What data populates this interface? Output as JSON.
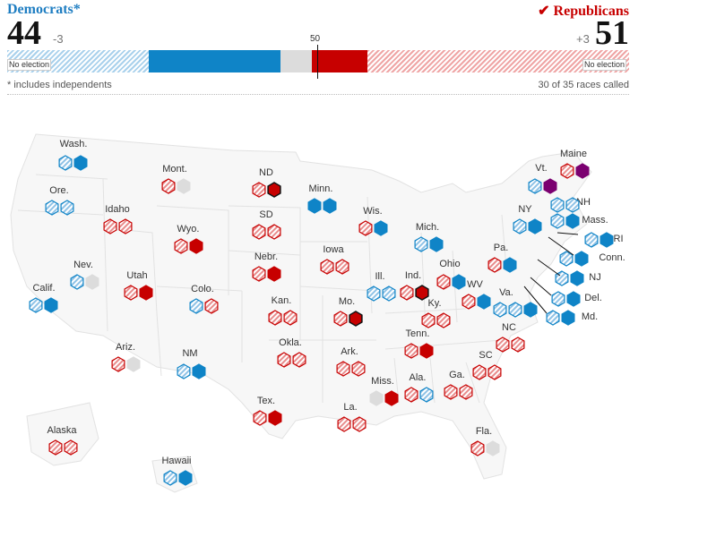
{
  "header": {
    "democrats_label": "Democrats*",
    "republicans_label": "✔ Republicans",
    "dem_seats": "44",
    "dem_change": "-3",
    "rep_seats": "51",
    "rep_change": "+3",
    "no_election": "No election",
    "majority_mark": "50",
    "footnote": "* includes independents",
    "races_called": "30 of 35 races called"
  },
  "colors": {
    "dem": "#0f84c7",
    "dem_hatch": "#a9d1ec",
    "rep": "#c70000",
    "rep_hatch": "#efa5a5",
    "independent": "#7b0070",
    "undecided": "#dcdcdc",
    "rep_gain_outline": "#121212"
  },
  "legend_note": "solid = seat up in 2014 (or won), hatched = seat not up",
  "states": [
    {
      "name": "Wash.",
      "seats": [
        "dem-hatch",
        "dem"
      ]
    },
    {
      "name": "Ore.",
      "seats": [
        "dem-hatch",
        "dem-hatch"
      ]
    },
    {
      "name": "Calif.",
      "seats": [
        "dem-hatch",
        "dem"
      ]
    },
    {
      "name": "Nev.",
      "seats": [
        "dem-hatch",
        "undecided"
      ]
    },
    {
      "name": "Idaho",
      "seats": [
        "rep-hatch",
        "rep-hatch"
      ]
    },
    {
      "name": "Mont.",
      "seats": [
        "rep-hatch",
        "undecided"
      ]
    },
    {
      "name": "Wyo.",
      "seats": [
        "rep-hatch",
        "rep"
      ]
    },
    {
      "name": "Utah",
      "seats": [
        "rep-hatch",
        "rep"
      ]
    },
    {
      "name": "Colo.",
      "seats": [
        "dem-hatch",
        "rep-hatch"
      ]
    },
    {
      "name": "Ariz.",
      "seats": [
        "rep-hatch",
        "undecided"
      ]
    },
    {
      "name": "NM",
      "seats": [
        "dem-hatch",
        "dem"
      ]
    },
    {
      "name": "ND",
      "seats": [
        "rep-hatch",
        "rep-gain"
      ]
    },
    {
      "name": "SD",
      "seats": [
        "rep-hatch",
        "rep-hatch"
      ]
    },
    {
      "name": "Nebr.",
      "seats": [
        "rep-hatch",
        "rep"
      ]
    },
    {
      "name": "Kan.",
      "seats": [
        "rep-hatch",
        "rep-hatch"
      ]
    },
    {
      "name": "Okla.",
      "seats": [
        "rep-hatch",
        "rep-hatch"
      ]
    },
    {
      "name": "Tex.",
      "seats": [
        "rep-hatch",
        "rep"
      ]
    },
    {
      "name": "Minn.",
      "seats": [
        "dem",
        "dem"
      ]
    },
    {
      "name": "Iowa",
      "seats": [
        "rep-hatch",
        "rep-hatch"
      ]
    },
    {
      "name": "Mo.",
      "seats": [
        "rep-hatch",
        "rep-gain"
      ]
    },
    {
      "name": "Ark.",
      "seats": [
        "rep-hatch",
        "rep-hatch"
      ]
    },
    {
      "name": "La.",
      "seats": [
        "rep-hatch",
        "rep-hatch"
      ]
    },
    {
      "name": "Wis.",
      "seats": [
        "rep-hatch",
        "dem"
      ]
    },
    {
      "name": "Ill.",
      "seats": [
        "dem-hatch",
        "dem-hatch"
      ]
    },
    {
      "name": "Mich.",
      "seats": [
        "dem-hatch",
        "dem"
      ]
    },
    {
      "name": "Ind.",
      "seats": [
        "rep-hatch",
        "rep-gain"
      ]
    },
    {
      "name": "Ohio",
      "seats": [
        "rep-hatch",
        "dem"
      ]
    },
    {
      "name": "Ky.",
      "seats": [
        "rep-hatch",
        "rep-hatch"
      ]
    },
    {
      "name": "Tenn.",
      "seats": [
        "rep-hatch",
        "rep"
      ]
    },
    {
      "name": "Miss.",
      "seats": [
        "undecided",
        "rep"
      ]
    },
    {
      "name": "Ala.",
      "seats": [
        "rep-hatch",
        "dem-hatch"
      ]
    },
    {
      "name": "Ga.",
      "seats": [
        "rep-hatch",
        "rep-hatch"
      ]
    },
    {
      "name": "Fla.",
      "seats": [
        "rep-hatch",
        "undecided"
      ]
    },
    {
      "name": "SC",
      "seats": [
        "rep-hatch",
        "rep-hatch"
      ]
    },
    {
      "name": "NC",
      "seats": [
        "rep-hatch",
        "rep-hatch"
      ]
    },
    {
      "name": "Va.",
      "seats": [
        "dem-hatch",
        "dem-hatch",
        "dem"
      ]
    },
    {
      "name": "WV",
      "seats": [
        "rep-hatch",
        "dem"
      ]
    },
    {
      "name": "Pa.",
      "seats": [
        "rep-hatch",
        "dem"
      ]
    },
    {
      "name": "NY",
      "seats": [
        "dem-hatch",
        "dem"
      ]
    },
    {
      "name": "Vt.",
      "seats": [
        "dem-hatch",
        "independent"
      ]
    },
    {
      "name": "Maine",
      "seats": [
        "rep-hatch",
        "independent"
      ]
    },
    {
      "name": "NH",
      "seats": [
        "dem-hatch",
        "dem-hatch"
      ]
    },
    {
      "name": "Mass.",
      "seats": [
        "dem-hatch",
        "dem"
      ]
    },
    {
      "name": "RI",
      "seats": [
        "dem-hatch",
        "dem"
      ]
    },
    {
      "name": "Conn.",
      "seats": [
        "dem-hatch",
        "dem"
      ]
    },
    {
      "name": "NJ",
      "seats": [
        "dem-hatch",
        "dem"
      ]
    },
    {
      "name": "Del.",
      "seats": [
        "dem-hatch",
        "dem"
      ]
    },
    {
      "name": "Md.",
      "seats": [
        "dem-hatch",
        "dem"
      ]
    },
    {
      "name": "Alaska",
      "seats": [
        "rep-hatch",
        "rep-hatch"
      ]
    },
    {
      "name": "Hawaii",
      "seats": [
        "dem-hatch",
        "dem"
      ]
    }
  ]
}
